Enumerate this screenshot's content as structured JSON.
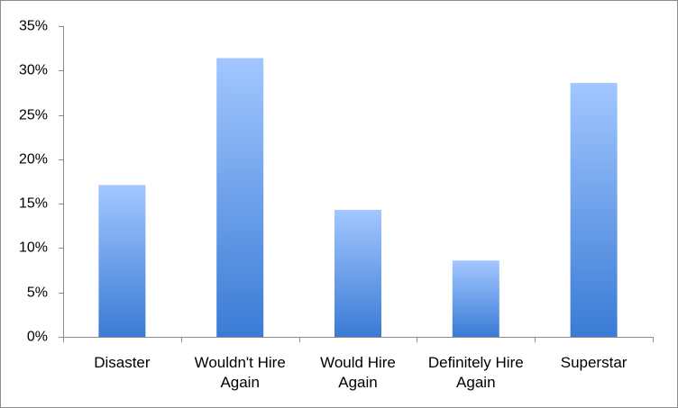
{
  "chart_data": {
    "type": "bar",
    "categories": [
      "Disaster",
      "Wouldn't Hire Again",
      "Would Hire Again",
      "Definitely Hire Again",
      "Superstar"
    ],
    "values": [
      17.1,
      31.4,
      14.3,
      8.6,
      28.6
    ],
    "gradient": [
      "#a2c7ff",
      "#3a7bd5"
    ],
    "ylim": [
      0,
      35
    ],
    "yticks": [
      {
        "value": 0,
        "label": "0%"
      },
      {
        "value": 5,
        "label": "5%"
      },
      {
        "value": 10,
        "label": "10%"
      },
      {
        "value": 15,
        "label": "15%"
      },
      {
        "value": 20,
        "label": "20%"
      },
      {
        "value": 25,
        "label": "25%"
      },
      {
        "value": 30,
        "label": "30%"
      },
      {
        "value": 35,
        "label": "35%"
      }
    ],
    "grid": false
  }
}
